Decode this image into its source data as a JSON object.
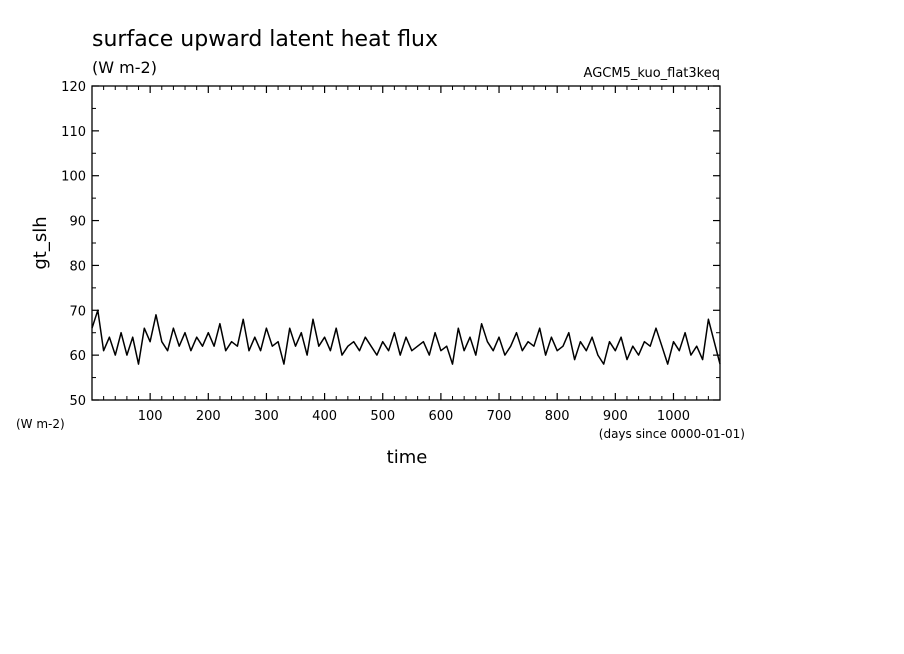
{
  "chart_data": {
    "type": "line",
    "title": "surface upward latent heat flux",
    "units": "(W m-2)",
    "run_name": "AGCM5_kuo_flat3keq",
    "xlabel": "time",
    "x_units": "(days since 0000-01-01)",
    "ylabel": "gt_slh",
    "y_units": "(W m-2)",
    "xlim": [
      0,
      1080
    ],
    "ylim": [
      50,
      120
    ],
    "x_ticks": [
      100,
      200,
      300,
      400,
      500,
      600,
      700,
      800,
      900,
      1000
    ],
    "y_ticks": [
      50,
      60,
      70,
      80,
      90,
      100,
      110,
      120
    ],
    "x_tick_labels": [
      "100",
      "200",
      "300",
      "400",
      "500",
      "600",
      "700",
      "800",
      "900",
      "1000"
    ],
    "y_tick_labels": [
      "50",
      "60",
      "70",
      "80",
      "90",
      "100",
      "110",
      "120"
    ],
    "grid": false,
    "series": [
      {
        "color": "#000000",
        "x": [
          0,
          10,
          20,
          30,
          40,
          50,
          60,
          70,
          80,
          90,
          100,
          110,
          120,
          130,
          140,
          150,
          160,
          170,
          180,
          190,
          200,
          210,
          220,
          230,
          240,
          250,
          260,
          270,
          280,
          290,
          300,
          310,
          320,
          330,
          340,
          350,
          360,
          370,
          380,
          390,
          400,
          410,
          420,
          430,
          440,
          450,
          460,
          470,
          480,
          490,
          500,
          510,
          520,
          530,
          540,
          550,
          560,
          570,
          580,
          590,
          600,
          610,
          620,
          630,
          640,
          650,
          660,
          670,
          680,
          690,
          700,
          710,
          720,
          730,
          740,
          750,
          760,
          770,
          780,
          790,
          800,
          810,
          820,
          830,
          840,
          850,
          860,
          870,
          880,
          890,
          900,
          910,
          920,
          930,
          940,
          950,
          960,
          970,
          980,
          990,
          1000,
          1010,
          1020,
          1030,
          1040,
          1050,
          1060,
          1070,
          1080
        ],
        "y": [
          66,
          70,
          61,
          64,
          60,
          65,
          60,
          64,
          58,
          66,
          63,
          69,
          63,
          61,
          66,
          62,
          65,
          61,
          64,
          62,
          65,
          62,
          67,
          61,
          63,
          62,
          68,
          61,
          64,
          61,
          66,
          62,
          63,
          58,
          66,
          62,
          65,
          60,
          68,
          62,
          64,
          61,
          66,
          60,
          62,
          63,
          61,
          64,
          62,
          60,
          63,
          61,
          65,
          60,
          64,
          61,
          62,
          63,
          60,
          65,
          61,
          62,
          58,
          66,
          61,
          64,
          60,
          67,
          63,
          61,
          64,
          60,
          62,
          65,
          61,
          63,
          62,
          66,
          60,
          64,
          61,
          62,
          65,
          59,
          63,
          61,
          64,
          60,
          58,
          63,
          61,
          64,
          59,
          62,
          60,
          63,
          62,
          66,
          62,
          58,
          63,
          61,
          65,
          60,
          62,
          59,
          68,
          63,
          58
        ]
      }
    ]
  }
}
